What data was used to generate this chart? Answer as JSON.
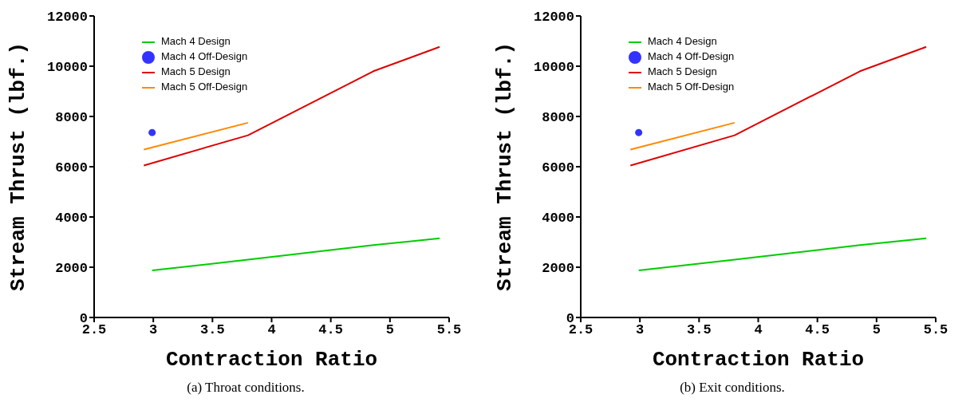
{
  "chart_data": [
    {
      "type": "line",
      "xlabel": "Contraction Ratio",
      "ylabel": "Stream Thrust (lbf.)",
      "xlim": [
        2.5,
        5.5
      ],
      "xticks": [
        {
          "value": 2.5,
          "label": "2.5"
        },
        3,
        {
          "value": 3.5,
          "label": "3.5"
        },
        4,
        {
          "value": 4.5,
          "label": "4.5"
        },
        5,
        {
          "value": 5.5,
          "label": "5.5"
        }
      ],
      "ylim": [
        0,
        12000
      ],
      "yticks": [
        0,
        2000,
        4000,
        6000,
        8000,
        10000,
        12000
      ],
      "grid": false,
      "legend": "top left",
      "annotations": [
        "(a)  Throat conditions."
      ],
      "series": [
        {
          "name": "Mach 5 Design",
          "color": "#dd0000",
          "x": [
            2.92,
            3.8,
            4.86,
            5.42
          ],
          "values": [
            6050,
            7250,
            9800,
            10770
          ]
        },
        {
          "name": "Mach 5 Off-Design",
          "color": "#ff8800",
          "x": [
            2.92,
            3.8
          ],
          "values": [
            6680,
            7750
          ]
        },
        {
          "name": "Mach 4 Design",
          "color": "#00cc00",
          "x": [
            2.99,
            3.8,
            4.86,
            5.42
          ],
          "values": [
            1870,
            2300,
            2880,
            3150
          ]
        },
        {
          "name": "Mach 4 Off-Design",
          "type": "scatter",
          "marker": "circle",
          "color": "#3333ff",
          "x": [
            2.99
          ],
          "values": [
            7360
          ]
        }
      ]
    },
    {
      "type": "line",
      "xlabel": "Contraction Ratio",
      "ylabel": "Stream Thrust (lbf.)",
      "xlim": [
        2.5,
        5.5
      ],
      "xticks": [
        {
          "value": 2.5,
          "label": "2.5"
        },
        3,
        {
          "value": 3.5,
          "label": "3.5"
        },
        4,
        {
          "value": 4.5,
          "label": "4.5"
        },
        5,
        {
          "value": 5.5,
          "label": "5.5"
        }
      ],
      "ylim": [
        0,
        12000
      ],
      "yticks": [
        0,
        2000,
        4000,
        6000,
        8000,
        10000,
        12000
      ],
      "grid": false,
      "legend": "top left",
      "annotations": [
        "(b)  Exit conditions."
      ],
      "series": [
        {
          "name": "Mach 5 Design",
          "color": "#dd0000",
          "x": [
            2.92,
            3.8,
            4.86,
            5.42
          ],
          "values": [
            6050,
            7250,
            9800,
            10770
          ]
        },
        {
          "name": "Mach 5 Off-Design",
          "color": "#ff8800",
          "x": [
            2.92,
            3.8
          ],
          "values": [
            6680,
            7750
          ]
        },
        {
          "name": "Mach 4 Design",
          "color": "#00cc00",
          "x": [
            2.99,
            3.8,
            4.86,
            5.42
          ],
          "values": [
            1870,
            2300,
            2880,
            3150
          ]
        },
        {
          "name": "Mach 4 Off-Design",
          "type": "scatter",
          "marker": "circle",
          "color": "#3333ff",
          "x": [
            2.99
          ],
          "values": [
            7360
          ]
        }
      ]
    }
  ]
}
